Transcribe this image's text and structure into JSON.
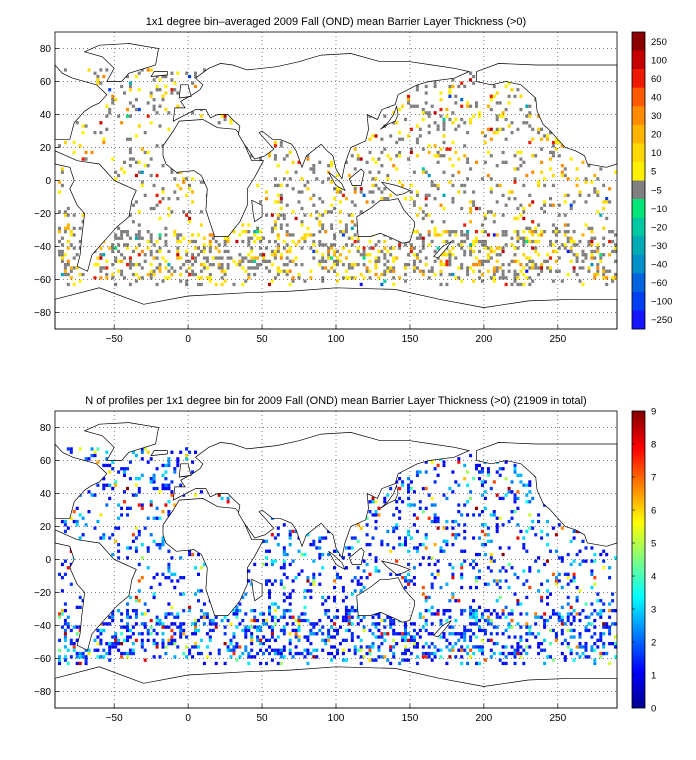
{
  "figure": {
    "panels": [
      {
        "title": "1x1 degree bin–averaged 2009 Fall (OND) mean Barrier Layer Thickness (>0)",
        "colorbar_labels": [
          "250",
          "100",
          "60",
          "40",
          "30",
          "20",
          "10",
          "5",
          "−5",
          "−10",
          "−20",
          "−30",
          "−40",
          "−60",
          "−100",
          "−250"
        ],
        "colorbar_colors": [
          "#8b0000",
          "#c40000",
          "#ee1a00",
          "#ff5a00",
          "#ff8c00",
          "#ffb400",
          "#ffd800",
          "#fff000",
          "#808080",
          "#00e676",
          "#00c8a0",
          "#00aab4",
          "#0090c8",
          "#0064dc",
          "#0040f0",
          "#1414ff"
        ]
      },
      {
        "title": "N of profiles per 1x1 degree bin for 2009 Fall (OND) mean Barrier Layer Thickness (>0) (21909 in total)",
        "colorbar_labels": [
          "9",
          "8",
          "7",
          "6",
          "5",
          "4",
          "3",
          "2",
          "1",
          "0"
        ]
      }
    ],
    "colors": {
      "land_outline": "#000000",
      "grid": "#000000",
      "background": "#ffffff"
    }
  },
  "chart_data": [
    {
      "type": "heatmap",
      "title": "1x1 degree bin–averaged 2009 Fall (OND) mean Barrier Layer Thickness (>0)",
      "xlabel": "",
      "ylabel": "",
      "xlim": [
        -90,
        290
      ],
      "ylim": [
        -90,
        90
      ],
      "x_ticks": [
        -50,
        0,
        50,
        100,
        150,
        200,
        250
      ],
      "y_ticks": [
        80,
        60,
        40,
        20,
        0,
        -20,
        -40,
        -60,
        -80
      ],
      "grid": true,
      "colorbar": {
        "position": "right",
        "tick_labels": [
          "250",
          "100",
          "60",
          "40",
          "30",
          "20",
          "10",
          "5",
          "-5",
          "-10",
          "-20",
          "-30",
          "-40",
          "-60",
          "-100",
          "-250"
        ]
      },
      "data_description": "Scattered 1x1 degree bins over global oceans; mostly gray (-5 to 5) and yellow/orange (5-40) with red high values in North Atlantic and Southern Ocean"
    },
    {
      "type": "heatmap",
      "title": "N of profiles per 1x1 degree bin for 2009 Fall (OND) mean Barrier Layer Thickness (>0) (21909 in total)",
      "xlabel": "",
      "ylabel": "",
      "xlim": [
        -90,
        290
      ],
      "ylim": [
        -90,
        90
      ],
      "x_ticks": [
        -50,
        0,
        50,
        100,
        150,
        200,
        250
      ],
      "y_ticks": [
        80,
        60,
        40,
        20,
        0,
        -20,
        -40,
        -60,
        -80
      ],
      "grid": true,
      "total_profiles": 21909,
      "colorbar": {
        "position": "right",
        "range": [
          0,
          9
        ],
        "tick_labels": [
          "9",
          "8",
          "7",
          "6",
          "5",
          "4",
          "3",
          "2",
          "1",
          "0"
        ],
        "colormap": "jet"
      }
    }
  ]
}
